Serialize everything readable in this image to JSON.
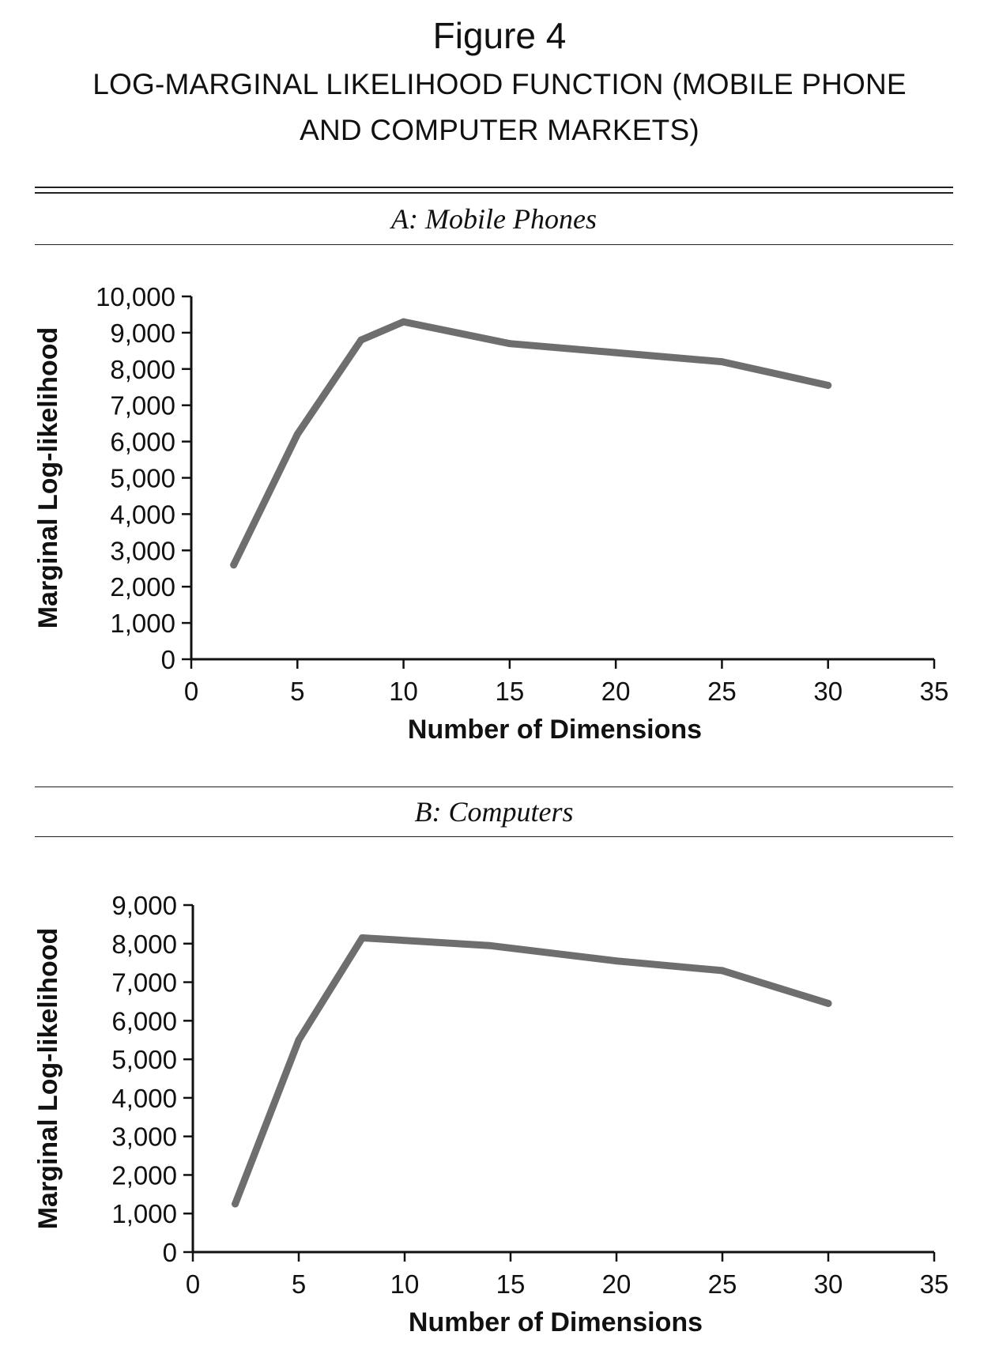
{
  "figure": {
    "title": "Figure 4",
    "subtitle_line1": "LOG-MARGINAL LIKELIHOOD FUNCTION (MOBILE PHONE",
    "subtitle_line2": "AND COMPUTER MARKETS)"
  },
  "colors": {
    "line": "#6e6e6e",
    "axis": "#111111"
  },
  "chart_data": [
    {
      "type": "line",
      "panel_label": "A: Mobile Phones",
      "xlabel": "Number of Dimensions",
      "ylabel": "Marginal Log-likelihood",
      "xlim": [
        0,
        35
      ],
      "ylim": [
        0,
        10000
      ],
      "x_ticks": [
        0,
        5,
        10,
        15,
        20,
        25,
        30,
        35
      ],
      "y_ticks": [
        0,
        1000,
        2000,
        3000,
        4000,
        5000,
        6000,
        7000,
        8000,
        9000,
        10000
      ],
      "x_tick_labels": [
        "0",
        "5",
        "10",
        "15",
        "20",
        "25",
        "30",
        "35"
      ],
      "y_tick_labels": [
        "0",
        "1,000",
        "2,000",
        "3,000",
        "4,000",
        "5,000",
        "6,000",
        "7,000",
        "8,000",
        "9,000",
        "10,000"
      ],
      "grid": false,
      "legend": "none",
      "series": [
        {
          "x": [
            2,
            5,
            8,
            10,
            15,
            20,
            25,
            30
          ],
          "y": [
            2600,
            6200,
            8800,
            9300,
            8700,
            8450,
            8200,
            7550
          ]
        }
      ]
    },
    {
      "type": "line",
      "panel_label": "B: Computers",
      "xlabel": "Number of Dimensions",
      "ylabel": "Marginal Log-likelihood",
      "xlim": [
        0,
        35
      ],
      "ylim": [
        0,
        9000
      ],
      "x_ticks": [
        0,
        5,
        10,
        15,
        20,
        25,
        30,
        35
      ],
      "y_ticks": [
        0,
        1000,
        2000,
        3000,
        4000,
        5000,
        6000,
        7000,
        8000,
        9000
      ],
      "x_tick_labels": [
        "0",
        "5",
        "10",
        "15",
        "20",
        "25",
        "30",
        "35"
      ],
      "y_tick_labels": [
        "0",
        "1,000",
        "2,000",
        "3,000",
        "4,000",
        "5,000",
        "6,000",
        "7,000",
        "8,000",
        "9,000"
      ],
      "grid": false,
      "legend": "none",
      "series": [
        {
          "x": [
            2,
            5,
            8,
            14,
            20,
            25,
            30
          ],
          "y": [
            1250,
            5500,
            8150,
            7950,
            7550,
            7300,
            6450
          ]
        }
      ]
    }
  ]
}
